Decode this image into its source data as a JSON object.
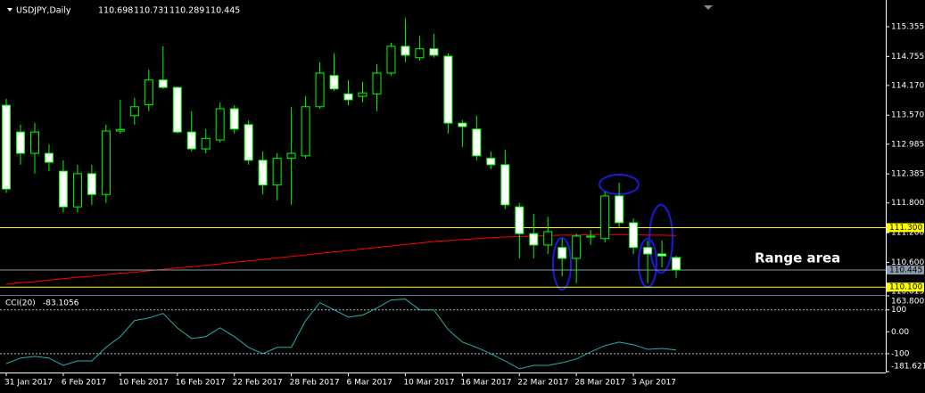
{
  "chart_data": {
    "type": "candlestick",
    "symbol": "USDJPY,Daily",
    "header_values": [
      110.698,
      110.731,
      110.289,
      110.445
    ],
    "categories": [
      "31 Jan 2017",
      null,
      null,
      null,
      "6 Feb 2017",
      null,
      null,
      null,
      "10 Feb 2017",
      null,
      null,
      null,
      "16 Feb 2017",
      null,
      null,
      null,
      "22 Feb 2017",
      null,
      null,
      null,
      "28 Feb 2017",
      null,
      null,
      null,
      "6 Mar 2017",
      null,
      null,
      null,
      "10 Mar 2017",
      null,
      null,
      null,
      "16 Mar 2017",
      null,
      null,
      null,
      "22 Mar 2017",
      null,
      null,
      null,
      "28 Mar 2017",
      null,
      null,
      null,
      "3 Apr 2017",
      null,
      null,
      null
    ],
    "open": [
      113.77,
      113.23,
      112.8,
      112.8,
      112.44,
      111.72,
      112.39,
      111.97,
      113.25,
      113.56,
      113.78,
      114.28,
      114.13,
      113.23,
      112.89,
      113.07,
      113.7,
      113.38,
      112.66,
      112.16,
      112.7,
      112.75,
      113.74,
      114.37,
      114.0,
      113.95,
      114.0,
      114.42,
      114.96,
      114.73,
      114.91,
      114.76,
      113.41,
      113.29,
      112.7,
      112.57,
      111.72,
      111.18,
      110.95,
      110.9,
      110.68,
      111.11,
      111.08,
      111.94,
      111.4,
      110.9,
      110.77,
      110.698
    ],
    "high": [
      113.9,
      113.38,
      113.41,
      112.98,
      112.66,
      112.57,
      112.57,
      113.38,
      113.88,
      113.92,
      114.49,
      114.96,
      114.15,
      113.65,
      113.29,
      113.83,
      113.77,
      113.47,
      112.84,
      112.8,
      113.74,
      113.95,
      114.64,
      114.82,
      114.28,
      114.24,
      114.6,
      115.03,
      115.53,
      115.17,
      115.21,
      114.82,
      113.47,
      113.56,
      112.84,
      112.87,
      111.8,
      111.58,
      111.52,
      111.08,
      111.18,
      111.25,
      112.03,
      112.21,
      111.49,
      111.04,
      111.04,
      110.731
    ],
    "low": [
      112.0,
      112.57,
      112.39,
      112.44,
      111.61,
      111.61,
      111.76,
      111.8,
      113.2,
      113.38,
      113.65,
      114.1,
      113.2,
      112.84,
      112.8,
      113.02,
      113.2,
      112.57,
      111.97,
      111.85,
      111.76,
      112.7,
      113.7,
      114.06,
      113.77,
      113.83,
      113.65,
      114.37,
      114.64,
      114.67,
      114.73,
      113.2,
      112.93,
      112.66,
      112.48,
      111.67,
      110.68,
      110.68,
      110.77,
      110.32,
      110.18,
      110.95,
      111.0,
      111.31,
      110.77,
      110.18,
      110.5,
      110.289
    ],
    "close": [
      112.08,
      112.8,
      113.23,
      112.62,
      111.72,
      112.39,
      111.97,
      113.25,
      113.28,
      113.74,
      114.28,
      114.13,
      113.23,
      112.89,
      113.1,
      113.7,
      113.29,
      112.66,
      112.16,
      112.7,
      112.8,
      113.74,
      114.42,
      114.1,
      113.88,
      114.02,
      114.42,
      114.96,
      114.78,
      114.91,
      114.78,
      113.41,
      113.34,
      112.75,
      112.57,
      111.76,
      111.18,
      110.95,
      111.22,
      110.68,
      111.13,
      111.13,
      111.94,
      111.4,
      110.9,
      110.77,
      110.73,
      110.445
    ],
    "wick_color": "#00ff00",
    "bull_color": "#000000",
    "bear_color": "#ffffff",
    "ylim": [
      109.96,
      115.894
    ],
    "yticks": [
      115.355,
      114.755,
      {
        "value": 114.17,
        "label": "114.170"
      },
      {
        "value": 113.57,
        "label": "113.570"
      },
      112.985,
      112.385,
      {
        "value": 111.8,
        "label": "111.800"
      },
      {
        "value": 111.2,
        "label": "111.200"
      },
      {
        "value": 110.6,
        "label": "110.600"
      },
      110.015
    ],
    "overlays": [
      {
        "color": "#ff0000",
        "values": [
          110.16,
          110.19,
          110.21,
          110.24,
          110.27,
          110.3,
          110.32,
          110.35,
          110.38,
          110.4,
          110.43,
          110.46,
          110.49,
          110.51,
          110.54,
          110.57,
          110.6,
          110.63,
          110.66,
          110.69,
          110.72,
          110.75,
          110.78,
          110.81,
          110.84,
          110.87,
          110.9,
          110.93,
          110.96,
          110.99,
          111.02,
          111.04,
          111.06,
          111.08,
          111.1,
          111.11,
          111.12,
          111.13,
          111.14,
          111.15,
          111.15,
          111.16,
          111.16,
          111.16,
          111.16,
          111.15,
          111.15,
          111.14
        ]
      }
    ],
    "hlines": [
      {
        "value": 111.3,
        "label": "111.300",
        "color": "#ffff00"
      },
      {
        "value": 110.445,
        "label": "110.445",
        "color": "#8899aa"
      },
      {
        "value": 110.1,
        "label": "110.100",
        "color": "#ffff00"
      }
    ],
    "annotation": "Range area",
    "indicator": {
      "label": "CCI(20)",
      "current": -83.1056,
      "color": "#20b2aa",
      "values": [
        -145,
        -120,
        -112,
        -120,
        -153,
        -133,
        -133,
        -71,
        -22,
        51,
        63,
        84,
        18,
        -31,
        -22,
        18,
        -22,
        -71,
        -100,
        -71,
        -71,
        51,
        133,
        100,
        67,
        76,
        108,
        145,
        149,
        100,
        100,
        10,
        -47,
        -71,
        -100,
        -133,
        -169,
        -153,
        -153,
        -141,
        -124,
        -92,
        -63,
        -47,
        -59,
        -80,
        -76,
        -83.1056
      ],
      "ylim": [
        -181.6217,
        163.8008
      ],
      "yticks": [
        163.8008,
        100,
        {
          "value": 0,
          "label": "0.00"
        },
        -100,
        -181.6217
      ],
      "levels": [
        100,
        -100
      ]
    }
  }
}
